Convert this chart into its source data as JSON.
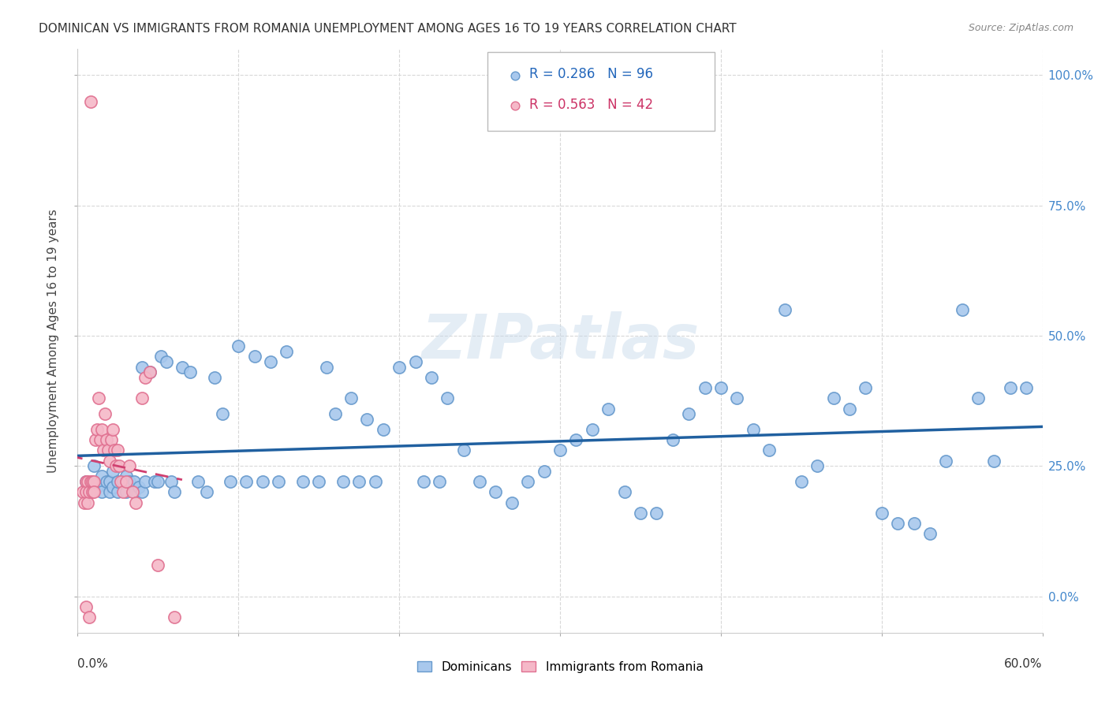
{
  "title": "DOMINICAN VS IMMIGRANTS FROM ROMANIA UNEMPLOYMENT AMONG AGES 16 TO 19 YEARS CORRELATION CHART",
  "source_text": "Source: ZipAtlas.com",
  "ylabel": "Unemployment Among Ages 16 to 19 years",
  "right_yticks": [
    "100.0%",
    "75.0%",
    "50.0%",
    "25.0%",
    "0.0%"
  ],
  "right_ytick_vals": [
    1.0,
    0.75,
    0.5,
    0.25,
    0.0
  ],
  "xlim": [
    0.0,
    0.6
  ],
  "ylim": [
    -0.07,
    1.05
  ],
  "blue_R": 0.286,
  "blue_N": 96,
  "pink_R": 0.563,
  "pink_N": 42,
  "blue_color": "#a8c8ed",
  "blue_edge_color": "#6699cc",
  "pink_color": "#f5b8c8",
  "pink_edge_color": "#e07090",
  "blue_line_color": "#2060a0",
  "pink_line_color": "#d04070",
  "watermark": "ZIPatlas",
  "legend_blue_label": "Dominicans",
  "legend_pink_label": "Immigrants from Romania",
  "dot_size": 120,
  "blue_dots_x": [
    0.005,
    0.008,
    0.01,
    0.012,
    0.015,
    0.015,
    0.018,
    0.02,
    0.02,
    0.022,
    0.022,
    0.025,
    0.025,
    0.028,
    0.03,
    0.03,
    0.032,
    0.035,
    0.035,
    0.038,
    0.04,
    0.04,
    0.042,
    0.045,
    0.048,
    0.05,
    0.052,
    0.055,
    0.058,
    0.06,
    0.065,
    0.07,
    0.075,
    0.08,
    0.085,
    0.09,
    0.095,
    0.1,
    0.105,
    0.11,
    0.115,
    0.12,
    0.125,
    0.13,
    0.14,
    0.15,
    0.155,
    0.16,
    0.165,
    0.17,
    0.175,
    0.18,
    0.185,
    0.19,
    0.2,
    0.21,
    0.215,
    0.22,
    0.225,
    0.23,
    0.24,
    0.25,
    0.26,
    0.27,
    0.28,
    0.29,
    0.3,
    0.31,
    0.32,
    0.33,
    0.34,
    0.35,
    0.36,
    0.37,
    0.38,
    0.39,
    0.4,
    0.41,
    0.42,
    0.43,
    0.44,
    0.45,
    0.46,
    0.47,
    0.48,
    0.49,
    0.5,
    0.51,
    0.52,
    0.53,
    0.54,
    0.55,
    0.56,
    0.57,
    0.58,
    0.59
  ],
  "blue_dots_y": [
    0.22,
    0.2,
    0.25,
    0.21,
    0.2,
    0.23,
    0.22,
    0.2,
    0.22,
    0.21,
    0.24,
    0.2,
    0.22,
    0.22,
    0.2,
    0.23,
    0.22,
    0.2,
    0.22,
    0.21,
    0.44,
    0.2,
    0.22,
    0.43,
    0.22,
    0.22,
    0.46,
    0.45,
    0.22,
    0.2,
    0.44,
    0.43,
    0.22,
    0.2,
    0.42,
    0.35,
    0.22,
    0.48,
    0.22,
    0.46,
    0.22,
    0.45,
    0.22,
    0.47,
    0.22,
    0.22,
    0.44,
    0.35,
    0.22,
    0.38,
    0.22,
    0.34,
    0.22,
    0.32,
    0.44,
    0.45,
    0.22,
    0.42,
    0.22,
    0.38,
    0.28,
    0.22,
    0.2,
    0.18,
    0.22,
    0.24,
    0.28,
    0.3,
    0.32,
    0.36,
    0.2,
    0.16,
    0.16,
    0.3,
    0.35,
    0.4,
    0.4,
    0.38,
    0.32,
    0.28,
    0.55,
    0.22,
    0.25,
    0.38,
    0.36,
    0.4,
    0.16,
    0.14,
    0.14,
    0.12,
    0.26,
    0.55,
    0.38,
    0.26,
    0.4,
    0.4
  ],
  "pink_dots_x": [
    0.003,
    0.004,
    0.005,
    0.005,
    0.005,
    0.006,
    0.006,
    0.007,
    0.007,
    0.008,
    0.008,
    0.009,
    0.009,
    0.01,
    0.01,
    0.011,
    0.012,
    0.013,
    0.014,
    0.015,
    0.016,
    0.017,
    0.018,
    0.019,
    0.02,
    0.021,
    0.022,
    0.023,
    0.024,
    0.025,
    0.026,
    0.027,
    0.028,
    0.03,
    0.032,
    0.034,
    0.036,
    0.04,
    0.042,
    0.045,
    0.05,
    0.06
  ],
  "pink_dots_y": [
    0.2,
    0.18,
    0.22,
    0.2,
    -0.02,
    0.22,
    0.18,
    0.2,
    -0.04,
    0.22,
    0.95,
    0.22,
    0.2,
    0.22,
    0.2,
    0.3,
    0.32,
    0.38,
    0.3,
    0.32,
    0.28,
    0.35,
    0.3,
    0.28,
    0.26,
    0.3,
    0.32,
    0.28,
    0.25,
    0.28,
    0.25,
    0.22,
    0.2,
    0.22,
    0.25,
    0.2,
    0.18,
    0.38,
    0.42,
    0.43,
    0.06,
    -0.04
  ]
}
